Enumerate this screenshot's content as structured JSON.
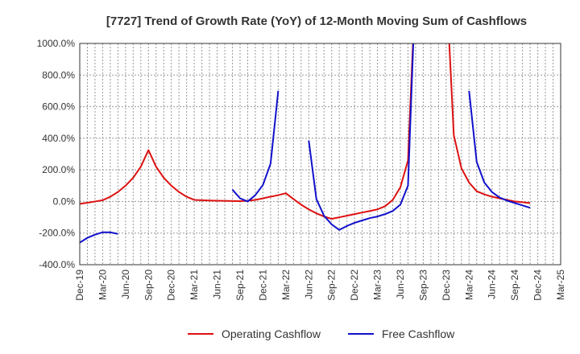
{
  "chart_data": {
    "type": "line",
    "title": "[7727]  Trend of Growth Rate (YoY) of 12-Month Moving Sum of Cashflows",
    "xlabel": "",
    "ylabel": "",
    "ylim": [
      -400,
      1000
    ],
    "y_ticks": [
      -400,
      -200,
      0,
      200,
      400,
      600,
      800,
      1000
    ],
    "y_tick_labels": [
      "-400.0%",
      "-200.0%",
      "0.0%",
      "200.0%",
      "400.0%",
      "600.0%",
      "800.0%",
      "1000.0%"
    ],
    "x_tick_labels": [
      "Dec-19",
      "Mar-20",
      "Jun-20",
      "Sep-20",
      "Dec-20",
      "Mar-21",
      "Jun-21",
      "Sep-21",
      "Dec-21",
      "Mar-22",
      "Jun-22",
      "Sep-22",
      "Dec-22",
      "Mar-23",
      "Jun-23",
      "Sep-23",
      "Dec-23",
      "Mar-24",
      "Jun-24",
      "Sep-24",
      "Dec-24",
      "Mar-25"
    ],
    "x_months": [
      "2019-12",
      "2020-01",
      "2020-02",
      "2020-03",
      "2020-04",
      "2020-05",
      "2020-06",
      "2020-07",
      "2020-08",
      "2020-09",
      "2020-10",
      "2020-11",
      "2020-12",
      "2021-01",
      "2021-02",
      "2021-03",
      "2021-04",
      "2021-05",
      "2021-06",
      "2021-07",
      "2021-08",
      "2021-09",
      "2021-10",
      "2021-11",
      "2021-12",
      "2022-01",
      "2022-02",
      "2022-03",
      "2022-04",
      "2022-05",
      "2022-06",
      "2022-07",
      "2022-08",
      "2022-09",
      "2022-10",
      "2022-11",
      "2022-12",
      "2023-01",
      "2023-02",
      "2023-03",
      "2023-04",
      "2023-05",
      "2023-06",
      "2023-07",
      "2023-08",
      "2023-09",
      "2023-10",
      "2023-11",
      "2023-12",
      "2024-01",
      "2024-02",
      "2024-03",
      "2024-04",
      "2024-05",
      "2024-06",
      "2024-07",
      "2024-08",
      "2024-09",
      "2024-10",
      "2024-11",
      "2024-12",
      "2025-01",
      "2025-02",
      "2025-03"
    ],
    "grid": true,
    "legend_position": "bottom",
    "series": [
      {
        "name": "Operating Cashflow",
        "color": "#dd1111",
        "values": [
          -15,
          -8,
          0,
          8,
          30,
          60,
          100,
          150,
          220,
          325,
          220,
          150,
          100,
          60,
          30,
          10,
          8,
          6,
          5,
          4,
          3,
          2,
          5,
          10,
          20,
          30,
          40,
          52,
          15,
          -20,
          -50,
          -75,
          -95,
          -110,
          -100,
          -90,
          -80,
          -70,
          -60,
          -50,
          -30,
          10,
          90,
          260,
          1400,
          null,
          null,
          null,
          1400,
          420,
          210,
          120,
          65,
          45,
          30,
          20,
          10,
          0,
          -5,
          -10,
          null,
          null,
          null,
          null
        ]
      },
      {
        "name": "Free Cashflow",
        "color": "#1111cc",
        "values": [
          -260,
          -230,
          -210,
          -195,
          -195,
          -205,
          null,
          null,
          null,
          null,
          null,
          null,
          null,
          null,
          null,
          null,
          null,
          null,
          null,
          null,
          75,
          20,
          0,
          40,
          105,
          240,
          700,
          null,
          null,
          null,
          385,
          15,
          -90,
          -145,
          -180,
          -155,
          -135,
          -120,
          -105,
          -95,
          -80,
          -60,
          -20,
          100,
          1400,
          null,
          null,
          null,
          null,
          null,
          null,
          700,
          250,
          120,
          60,
          25,
          5,
          -10,
          -25,
          -40,
          null,
          null,
          null,
          null
        ]
      }
    ]
  }
}
